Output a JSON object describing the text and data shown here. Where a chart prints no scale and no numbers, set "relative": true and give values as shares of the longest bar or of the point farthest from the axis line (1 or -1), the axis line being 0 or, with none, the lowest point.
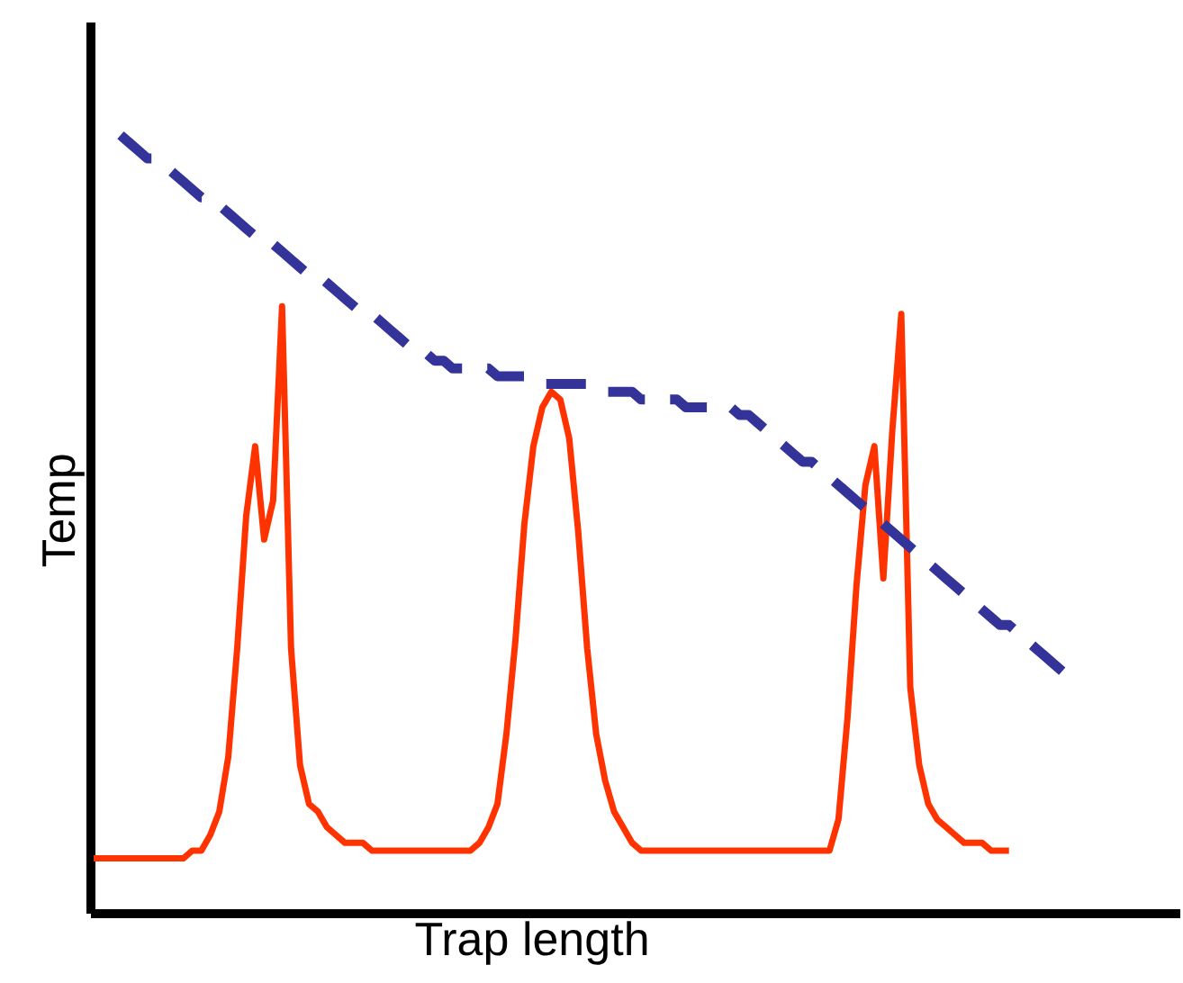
{
  "chart_data": {
    "type": "line",
    "xlabel": "Trap length",
    "ylabel": "Temp",
    "relative": true,
    "marker": "none",
    "categories": [
      null,
      null,
      null,
      null,
      null,
      null,
      null,
      null,
      null,
      null,
      null,
      null,
      null,
      null,
      null,
      null,
      null,
      null,
      null,
      null,
      null,
      null,
      null,
      null,
      null,
      null,
      null,
      null,
      null,
      null,
      null,
      null,
      null,
      null,
      null,
      null,
      null,
      null,
      null,
      null,
      null,
      null,
      null,
      null,
      null,
      null,
      null,
      null,
      null,
      null,
      null,
      null,
      null,
      null,
      null,
      null,
      null,
      null,
      null,
      null,
      null,
      null,
      null,
      null,
      null,
      null,
      null,
      null,
      null,
      null,
      null,
      null,
      null,
      null,
      null,
      null,
      null,
      null,
      null,
      null,
      null,
      null,
      null,
      null,
      null,
      null,
      null,
      null,
      null,
      null,
      null,
      null,
      null,
      null,
      null,
      null,
      null,
      null,
      null,
      null,
      null,
      null,
      null,
      null,
      null,
      null,
      null,
      null,
      null,
      null
    ],
    "series": [
      {
        "color": "#ff3300",
        "line_style": "solid",
        "values": [
          0.07,
          0.07,
          0.07,
          0.07,
          0.07,
          0.07,
          0.07,
          0.07,
          0.07,
          0.07,
          0.07,
          0.08,
          0.08,
          0.1,
          0.13,
          0.2,
          0.34,
          0.51,
          0.6,
          0.48,
          0.53,
          0.78,
          0.34,
          0.19,
          0.14,
          0.13,
          0.11,
          0.1,
          0.09,
          0.09,
          0.09,
          0.08,
          0.08,
          0.08,
          0.08,
          0.08,
          0.08,
          0.08,
          0.08,
          0.08,
          0.08,
          0.08,
          0.08,
          0.09,
          0.11,
          0.14,
          0.23,
          0.35,
          0.5,
          0.6,
          0.65,
          0.67,
          0.66,
          0.61,
          0.49,
          0.34,
          0.23,
          0.17,
          0.13,
          0.11,
          0.09,
          0.08,
          0.08,
          0.08,
          0.08,
          0.08,
          0.08,
          0.08,
          0.08,
          0.08,
          0.08,
          0.08,
          0.08,
          0.08,
          0.08,
          0.08,
          0.08,
          0.08,
          0.08,
          0.08,
          0.08,
          0.08,
          0.08,
          0.12,
          0.25,
          0.42,
          0.55,
          0.6,
          0.43,
          0.62,
          0.77,
          0.29,
          0.19,
          0.14,
          0.12,
          0.11,
          0.1,
          0.09,
          0.09,
          0.09,
          0.08,
          0.08,
          0.08,
          null,
          null,
          null,
          null,
          null,
          null,
          null
        ]
      },
      {
        "color": "#333399",
        "line_style": "dashed",
        "values": [
          null,
          null,
          null,
          1.0,
          0.99,
          0.98,
          0.97,
          0.97,
          0.96,
          0.95,
          0.94,
          0.93,
          0.92,
          0.92,
          0.91,
          0.9,
          0.89,
          0.88,
          0.87,
          0.87,
          0.86,
          0.85,
          0.84,
          0.83,
          0.82,
          0.82,
          0.81,
          0.8,
          0.79,
          0.78,
          0.77,
          0.77,
          0.76,
          0.75,
          0.74,
          0.73,
          0.72,
          0.72,
          0.71,
          0.71,
          0.7,
          0.7,
          0.7,
          0.7,
          0.7,
          0.69,
          0.69,
          0.69,
          0.69,
          0.69,
          0.68,
          0.68,
          0.68,
          0.68,
          0.68,
          0.68,
          0.67,
          0.67,
          0.67,
          0.67,
          0.67,
          0.66,
          0.66,
          0.66,
          0.66,
          0.66,
          0.65,
          0.65,
          0.65,
          0.65,
          0.65,
          0.65,
          0.64,
          0.64,
          0.63,
          0.62,
          0.61,
          0.6,
          0.59,
          0.58,
          0.58,
          0.57,
          0.56,
          0.55,
          0.54,
          0.53,
          0.52,
          0.51,
          0.5,
          0.49,
          0.48,
          0.47,
          0.46,
          0.45,
          0.44,
          0.43,
          0.42,
          0.41,
          0.4,
          0.39,
          0.38,
          0.37,
          0.37,
          0.36,
          0.35,
          0.34,
          0.33,
          0.32,
          0.31,
          0.3
        ]
      }
    ]
  }
}
